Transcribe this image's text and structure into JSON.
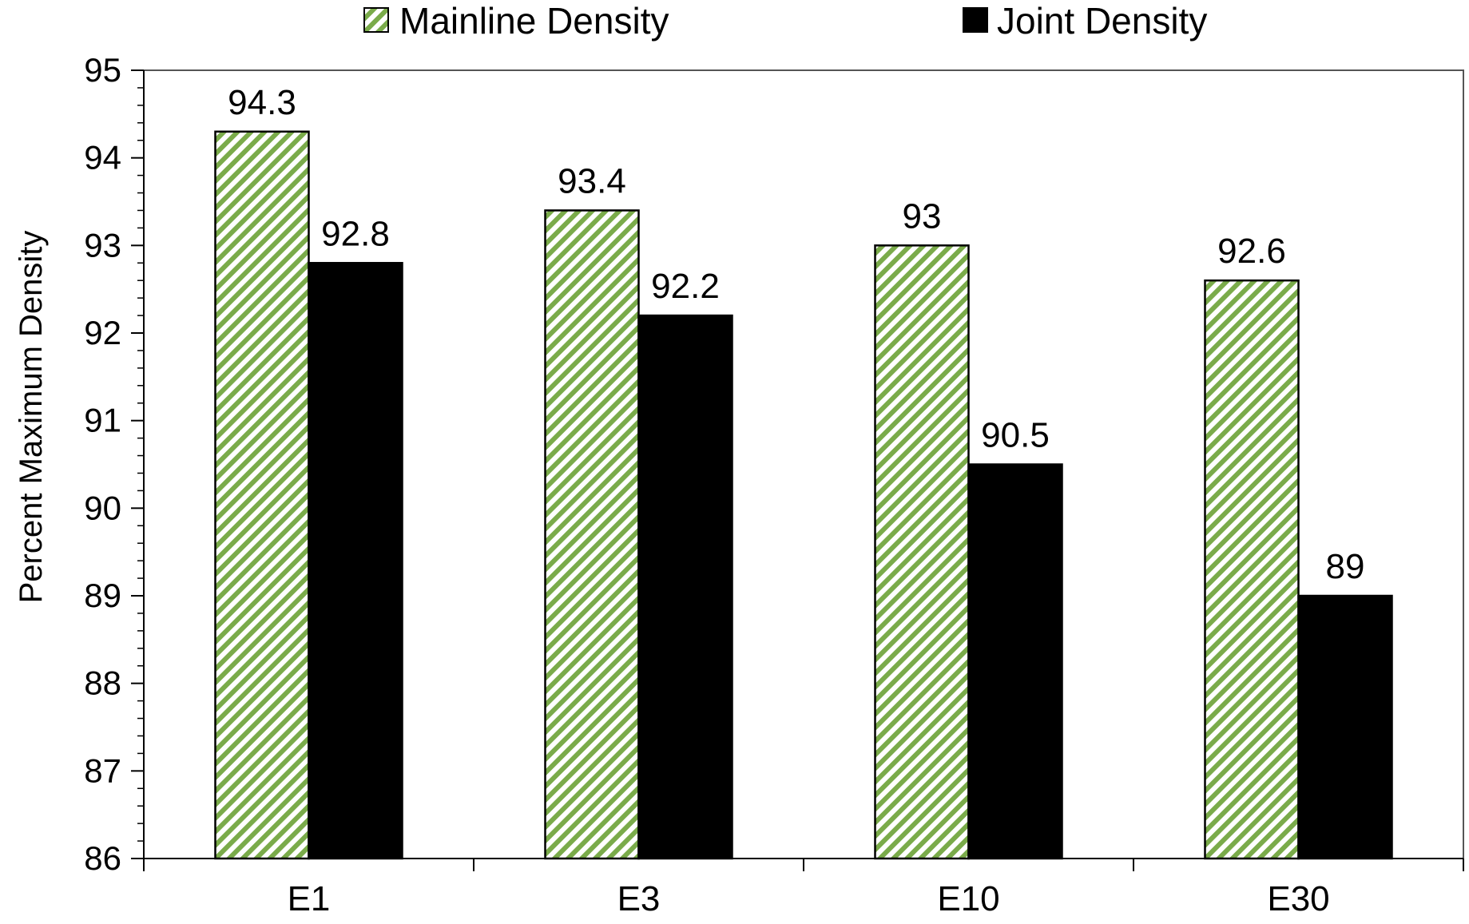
{
  "chart_data": {
    "type": "bar",
    "title": "",
    "xlabel": "",
    "ylabel": "Percent Maximum Density",
    "ylim": [
      86,
      95
    ],
    "y_ticks": [
      "86",
      "87",
      "88",
      "89",
      "90",
      "91",
      "92",
      "93",
      "94",
      "95"
    ],
    "minor_ticks_per_major": 5,
    "categories": [
      "E1",
      "E3",
      "E10",
      "E30"
    ],
    "series": [
      {
        "name": "Mainline Density",
        "values": [
          94.3,
          93.4,
          93,
          92.6
        ],
        "value_labels": [
          "94.3",
          "93.4",
          "93",
          "92.6"
        ],
        "fill": "diagonal-hatch",
        "color": "#7aab4a"
      },
      {
        "name": "Joint Density",
        "values": [
          92.8,
          92.2,
          90.5,
          89
        ],
        "value_labels": [
          "92.8",
          "92.2",
          "90.5",
          "89"
        ],
        "fill": "solid",
        "color": "#000000"
      }
    ],
    "legend_position": "top",
    "grid": false
  }
}
